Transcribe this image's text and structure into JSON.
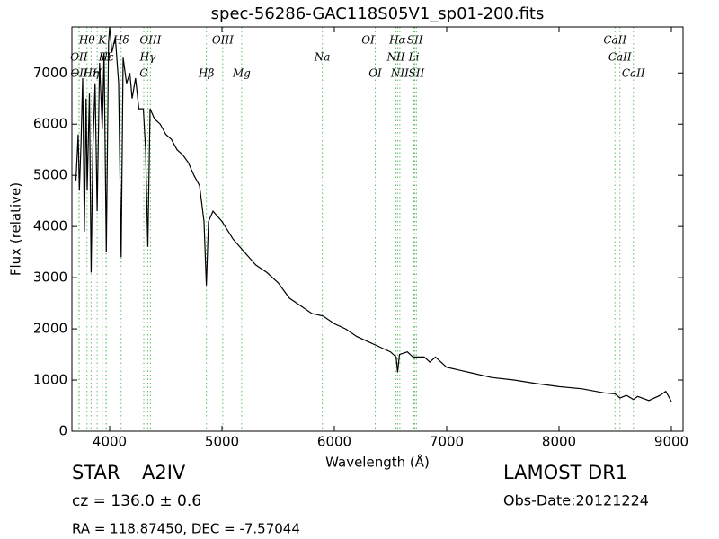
{
  "chart_data": {
    "type": "line",
    "title": "spec-56286-GAC118S05V1_sp01-200.fits",
    "x_label": "Wavelength (Å)",
    "y_label": "Flux (relative)",
    "xlim": [
      3664,
      9104
    ],
    "ylim": [
      0,
      7900
    ],
    "xticks": [
      4000,
      5000,
      6000,
      7000,
      8000,
      9000
    ],
    "yticks": [
      0,
      1000,
      2000,
      3000,
      4000,
      5000,
      6000,
      7000
    ],
    "color": "#000000",
    "line_color": "#5fbf5f",
    "x": [
      3700,
      3720,
      3730,
      3745,
      3760,
      3775,
      3790,
      3800,
      3820,
      3835,
      3850,
      3870,
      3889,
      3910,
      3934,
      3950,
      3970,
      3990,
      4000,
      4020,
      4050,
      4080,
      4102,
      4120,
      4150,
      4180,
      4200,
      4230,
      4260,
      4300,
      4320,
      4340,
      4360,
      4400,
      4450,
      4500,
      4550,
      4600,
      4650,
      4700,
      4750,
      4800,
      4840,
      4861,
      4880,
      4920,
      5000,
      5100,
      5200,
      5300,
      5400,
      5500,
      5600,
      5700,
      5800,
      5900,
      6000,
      6100,
      6200,
      6300,
      6400,
      6500,
      6550,
      6563,
      6580,
      6650,
      6700,
      6800,
      6850,
      6900,
      7000,
      7200,
      7400,
      7600,
      7800,
      8000,
      8200,
      8400,
      8500,
      8542,
      8600,
      8662,
      8700,
      8800,
      8900,
      8950,
      9000
    ],
    "values": [
      4900,
      5800,
      4700,
      5600,
      6900,
      3900,
      6500,
      4700,
      6600,
      3100,
      5500,
      6800,
      4300,
      7200,
      5900,
      7400,
      3500,
      7600,
      7900,
      7400,
      7700,
      6800,
      3400,
      7300,
      6800,
      7000,
      6500,
      6900,
      6300,
      6300,
      5500,
      3600,
      6300,
      6100,
      6000,
      5800,
      5700,
      5500,
      5400,
      5250,
      5000,
      4800,
      4100,
      2850,
      4100,
      4300,
      4100,
      3750,
      3500,
      3250,
      3100,
      2900,
      2600,
      2450,
      2300,
      2250,
      2100,
      2000,
      1850,
      1750,
      1650,
      1550,
      1450,
      1150,
      1500,
      1550,
      1450,
      1450,
      1350,
      1450,
      1250,
      1150,
      1050,
      1000,
      930,
      870,
      830,
      750,
      730,
      650,
      700,
      620,
      680,
      600,
      700,
      780,
      580
    ],
    "line_labels": [
      [
        {
          "label": "Hθ",
          "x": 3798
        },
        {
          "label": "K",
          "x": 3934
        },
        {
          "label": "Hδ",
          "x": 4102
        },
        {
          "label": "OIII",
          "x": 4363
        },
        {
          "label": "OIII",
          "x": 5007
        },
        {
          "label": "OI",
          "x": 6300
        },
        {
          "label": "Hα",
          "x": 6563
        },
        {
          "label": "SII",
          "x": 6717
        },
        {
          "label": "CaII",
          "x": 8498
        }
      ],
      [
        {
          "label": "OII",
          "x": 3727
        },
        {
          "label": "Hε",
          "x": 3970
        },
        {
          "label": "H",
          "x": 3968
        },
        {
          "label": "Hγ",
          "x": 4340
        },
        {
          "label": "Na",
          "x": 5893
        },
        {
          "label": "NII",
          "x": 6548
        },
        {
          "label": "Li",
          "x": 6708
        },
        {
          "label": "CaII",
          "x": 8542
        }
      ],
      [
        {
          "label": "OII",
          "x": 3729
        },
        {
          "label": "Hη",
          "x": 3835
        },
        {
          "label": "H",
          "x": 3889
        },
        {
          "label": "G",
          "x": 4304
        },
        {
          "label": "Hβ",
          "x": 4861
        },
        {
          "label": "Mg",
          "x": 5175
        },
        {
          "label": "OI",
          "x": 6364
        },
        {
          "label": "NII",
          "x": 6583
        },
        {
          "label": "SII",
          "x": 6731
        },
        {
          "label": "CaII",
          "x": 8662
        }
      ]
    ],
    "info": {
      "class": "STAR",
      "subclass": "A2IV",
      "survey": "LAMOST DR1",
      "cz": "cz = 136.0 ± 0.6",
      "date": "Obs-Date:20121224",
      "coords": "RA = 118.87450, DEC = -7.57044"
    }
  }
}
